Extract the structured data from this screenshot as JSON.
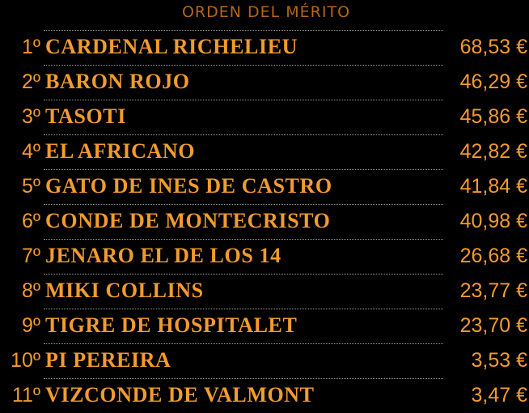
{
  "title": "ORDEN DEL MÉRITO",
  "rows": [
    {
      "pos": "1º",
      "name": "CARDENAL RICHELIEU",
      "amount": "68,53 €"
    },
    {
      "pos": "2º",
      "name": "BARON ROJO",
      "amount": "46,29 €"
    },
    {
      "pos": "3º",
      "name": "TASOTI",
      "amount": "45,86 €"
    },
    {
      "pos": "4º",
      "name": "EL AFRICANO",
      "amount": "42,82 €"
    },
    {
      "pos": "5º",
      "name": "GATO DE INES DE CASTRO",
      "amount": "41,84 €"
    },
    {
      "pos": "6º",
      "name": "CONDE DE MONTECRISTO",
      "amount": "40,98 €"
    },
    {
      "pos": "7º",
      "name": "JENARO EL DE LOS 14",
      "amount": "26,68 €"
    },
    {
      "pos": "8º",
      "name": "MIKI COLLINS",
      "amount": "23,77 €"
    },
    {
      "pos": "9º",
      "name": "TIGRE DE HOSPITALET",
      "amount": "23,70 €"
    },
    {
      "pos": "10º",
      "name": "PI PEREIRA",
      "amount": "3,53 €"
    },
    {
      "pos": "11º",
      "name": "VIZCONDE DE VALMONT",
      "amount": "3,47 €"
    }
  ],
  "colors": {
    "background": "#000000",
    "text": "#f29b2e",
    "title": "#b3661a",
    "separator": "#9a9a9a"
  }
}
